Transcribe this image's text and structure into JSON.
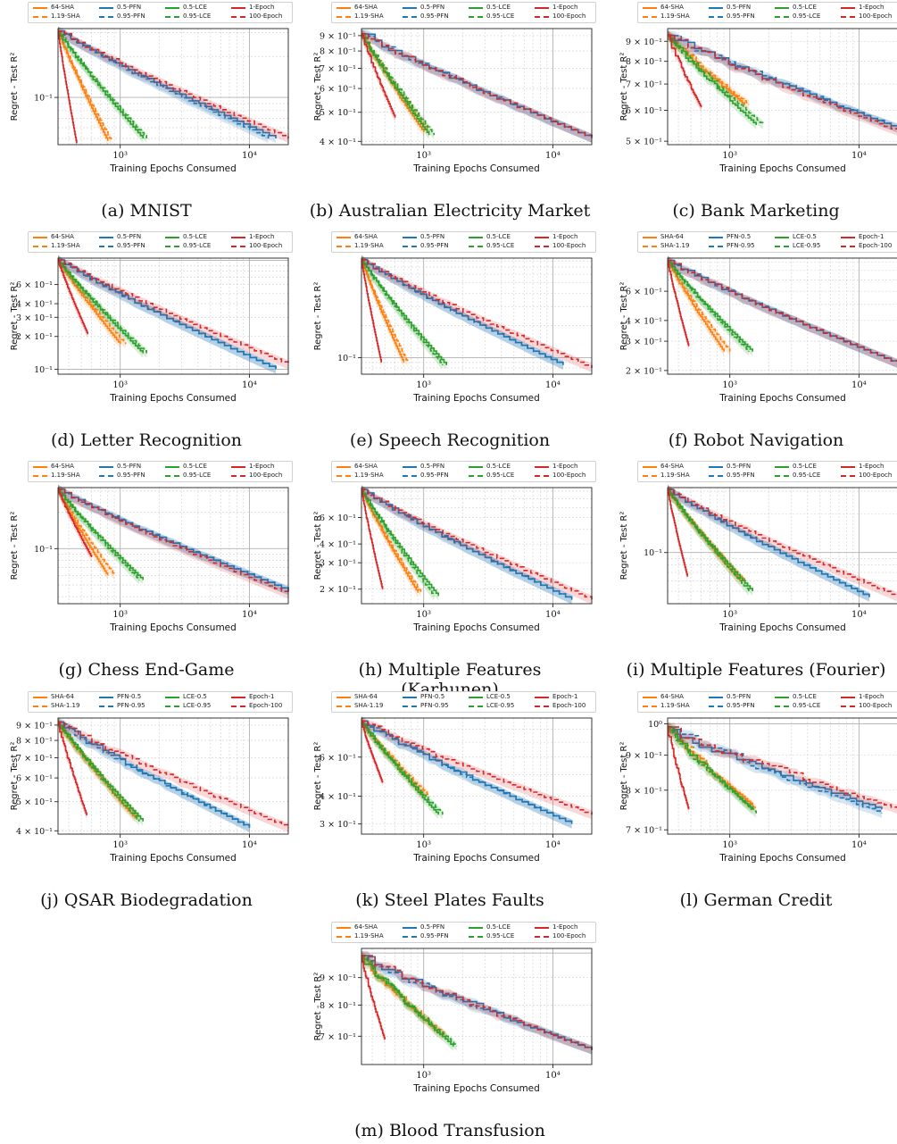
{
  "colors": {
    "orange": "#ff7f0e",
    "blue": "#1f77b4",
    "green": "#2ca02c",
    "red": "#d62728"
  },
  "legend_styles": {
    "names": [
      "orange-solid",
      "blue-solid",
      "green-solid",
      "red-solid",
      "orange-dashed",
      "blue-dashed",
      "green-dashed",
      "red-dashed"
    ]
  },
  "legend_sets": {
    "A": [
      "64-SHA",
      "0.5-PFN",
      "0.5-LCE",
      "1-Epoch",
      "1.19-SHA",
      "0.95-PFN",
      "0.95-LCE",
      "100-Epoch"
    ],
    "B": [
      "SHA-64",
      "PFN-0.5",
      "LCE-0.5",
      "Epoch-1",
      "SHA-1.19",
      "PFN-0.95",
      "LCE-0.95",
      "Epoch-100"
    ]
  },
  "chart_data": [
    {
      "type": "line",
      "caption": "(a) MNIST",
      "legend": "A",
      "xlabel": "Training Epochs Consumed",
      "ylabel": "Regret - Test R²",
      "xscale": "log",
      "yscale": "log",
      "xlim": [
        330,
        20000
      ],
      "ylim": [
        0.045,
        0.32
      ],
      "xticks": [
        "10³",
        "10⁴"
      ],
      "yticks": [
        "10⁻¹"
      ],
      "series": [
        {
          "name": "64-SHA",
          "end_x": 800,
          "end_y": 0.048
        },
        {
          "name": "1.19-SHA",
          "end_x": 850,
          "end_y": 0.048
        },
        {
          "name": "0.5-PFN",
          "end_x": 16000,
          "end_y": 0.05
        },
        {
          "name": "0.95-PFN",
          "end_x": 14000,
          "end_y": 0.05
        },
        {
          "name": "0.5-LCE",
          "end_x": 1500,
          "end_y": 0.05
        },
        {
          "name": "0.95-LCE",
          "end_x": 1600,
          "end_y": 0.05
        },
        {
          "name": "1-Epoch",
          "end_x": 460,
          "end_y": 0.046
        },
        {
          "name": "100-Epoch",
          "end_x": 20000,
          "end_y": 0.05
        }
      ]
    },
    {
      "type": "line",
      "caption": "(b) Australian Electricity Market",
      "legend": "A",
      "xlabel": "Training Epochs Consumed",
      "ylabel": "Regret - Test R²",
      "xscale": "log",
      "yscale": "log",
      "xlim": [
        330,
        20000
      ],
      "ylim": [
        0.39,
        0.95
      ],
      "xticks": [
        "10³",
        "10⁴"
      ],
      "yticks": [
        "4 × 10⁻¹",
        "5 × 10⁻¹",
        "6 × 10⁻¹",
        "7 × 10⁻¹",
        "8 × 10⁻¹",
        "9 × 10⁻¹"
      ],
      "series": [
        {
          "name": "64-SHA",
          "end_x": 1000,
          "end_y": 0.43
        },
        {
          "name": "1.19-SHA",
          "end_x": 1100,
          "end_y": 0.43
        },
        {
          "name": "0.5-PFN",
          "end_x": 20000,
          "end_y": 0.41
        },
        {
          "name": "0.95-PFN",
          "end_x": 20000,
          "end_y": 0.41
        },
        {
          "name": "0.5-LCE",
          "end_x": 1100,
          "end_y": 0.42
        },
        {
          "name": "0.95-LCE",
          "end_x": 1200,
          "end_y": 0.42
        },
        {
          "name": "1-Epoch",
          "end_x": 600,
          "end_y": 0.48
        },
        {
          "name": "100-Epoch",
          "end_x": 20000,
          "end_y": 0.41
        }
      ]
    },
    {
      "type": "line",
      "caption": "(c) Bank Marketing",
      "legend": "A",
      "xlabel": "Training Epochs Consumed",
      "ylabel": "Regret - Test R²",
      "xscale": "log",
      "yscale": "log",
      "xlim": [
        330,
        20000
      ],
      "ylim": [
        0.49,
        0.97
      ],
      "xticks": [
        "10³",
        "10⁴"
      ],
      "yticks": [
        "5 × 10⁻¹",
        "6 × 10⁻¹",
        "7 × 10⁻¹",
        "8 × 10⁻¹",
        "9 × 10⁻¹"
      ],
      "series": [
        {
          "name": "64-SHA",
          "end_x": 1300,
          "end_y": 0.62
        },
        {
          "name": "1.19-SHA",
          "end_x": 1400,
          "end_y": 0.62
        },
        {
          "name": "0.5-PFN",
          "end_x": 20000,
          "end_y": 0.54
        },
        {
          "name": "0.95-PFN",
          "end_x": 20000,
          "end_y": 0.54
        },
        {
          "name": "0.5-LCE",
          "end_x": 1600,
          "end_y": 0.55
        },
        {
          "name": "0.95-LCE",
          "end_x": 1800,
          "end_y": 0.55
        },
        {
          "name": "1-Epoch",
          "end_x": 600,
          "end_y": 0.61
        },
        {
          "name": "100-Epoch",
          "end_x": 20000,
          "end_y": 0.53
        }
      ]
    },
    {
      "type": "line",
      "caption": "(d) Letter Recognition",
      "legend": "A",
      "xlabel": "Training Epochs Consumed",
      "ylabel": "Regret - Test R²",
      "xscale": "log",
      "yscale": "log",
      "xlim": [
        330,
        20000
      ],
      "ylim": [
        0.09,
        1.05
      ],
      "xticks": [
        "10³",
        "10⁴"
      ],
      "yticks": [
        "10⁻¹",
        "2 × 10⁻¹",
        "3 × 10⁻¹",
        "4 × 10⁻¹",
        "6 × 10⁻¹"
      ],
      "series": [
        {
          "name": "64-SHA",
          "end_x": 1000,
          "end_y": 0.17
        },
        {
          "name": "1.19-SHA",
          "end_x": 1100,
          "end_y": 0.17
        },
        {
          "name": "0.5-PFN",
          "end_x": 16000,
          "end_y": 0.1
        },
        {
          "name": "0.95-PFN",
          "end_x": 16000,
          "end_y": 0.1
        },
        {
          "name": "0.5-LCE",
          "end_x": 1500,
          "end_y": 0.14
        },
        {
          "name": "0.95-LCE",
          "end_x": 1600,
          "end_y": 0.14
        },
        {
          "name": "1-Epoch",
          "end_x": 560,
          "end_y": 0.21
        },
        {
          "name": "100-Epoch",
          "end_x": 20000,
          "end_y": 0.11
        }
      ]
    },
    {
      "type": "line",
      "caption": "(e) Speech Recognition",
      "legend": "A",
      "xlabel": "Training Epochs Consumed",
      "ylabel": "Regret - Test R²",
      "xscale": "log",
      "yscale": "log",
      "xlim": [
        330,
        20000
      ],
      "ylim": [
        0.07,
        0.85
      ],
      "xticks": [
        "10³",
        "10⁴"
      ],
      "yticks": [
        "10⁻¹"
      ],
      "series": [
        {
          "name": "64-SHA",
          "end_x": 700,
          "end_y": 0.09
        },
        {
          "name": "1.19-SHA",
          "end_x": 750,
          "end_y": 0.09
        },
        {
          "name": "0.5-PFN",
          "end_x": 12000,
          "end_y": 0.085
        },
        {
          "name": "0.95-PFN",
          "end_x": 12000,
          "end_y": 0.085
        },
        {
          "name": "0.5-LCE",
          "end_x": 1500,
          "end_y": 0.085
        },
        {
          "name": "0.95-LCE",
          "end_x": 1400,
          "end_y": 0.085
        },
        {
          "name": "1-Epoch",
          "end_x": 470,
          "end_y": 0.09
        },
        {
          "name": "100-Epoch",
          "end_x": 20000,
          "end_y": 0.08
        }
      ]
    },
    {
      "type": "line",
      "caption": "(f) Robot Navigation",
      "legend": "B",
      "xlabel": "Training Epochs Consumed",
      "ylabel": "Regret - Test R²",
      "xscale": "log",
      "yscale": "log",
      "xlim": [
        330,
        20000
      ],
      "ylim": [
        0.19,
        0.95
      ],
      "xticks": [
        "10³",
        "10⁴"
      ],
      "yticks": [
        "2 × 10⁻¹",
        "3 × 10⁻¹",
        "4 × 10⁻¹",
        "6 × 10⁻¹"
      ],
      "series": [
        {
          "name": "SHA-64",
          "end_x": 900,
          "end_y": 0.26
        },
        {
          "name": "SHA-1.19",
          "end_x": 1000,
          "end_y": 0.26
        },
        {
          "name": "PFN-0.5",
          "end_x": 20000,
          "end_y": 0.22
        },
        {
          "name": "PFN-0.95",
          "end_x": 20000,
          "end_y": 0.22
        },
        {
          "name": "LCE-0.5",
          "end_x": 1500,
          "end_y": 0.26
        },
        {
          "name": "LCE-0.95",
          "end_x": 1400,
          "end_y": 0.26
        },
        {
          "name": "Epoch-1",
          "end_x": 480,
          "end_y": 0.28
        },
        {
          "name": "Epoch-100",
          "end_x": 20000,
          "end_y": 0.22
        }
      ]
    },
    {
      "type": "line",
      "caption": "(g) Chess End-Game",
      "legend": "A",
      "xlabel": "Training Epochs Consumed",
      "ylabel": "Regret - Test R²",
      "xscale": "log",
      "yscale": "log",
      "xlim": [
        330,
        20000
      ],
      "ylim": [
        0.035,
        0.32
      ],
      "xticks": [
        "10³",
        "10⁴"
      ],
      "yticks": [
        "10⁻¹"
      ],
      "series": [
        {
          "name": "64-SHA",
          "end_x": 800,
          "end_y": 0.06
        },
        {
          "name": "1.19-SHA",
          "end_x": 900,
          "end_y": 0.06
        },
        {
          "name": "0.5-PFN",
          "end_x": 20000,
          "end_y": 0.045
        },
        {
          "name": "0.95-PFN",
          "end_x": 20000,
          "end_y": 0.045
        },
        {
          "name": "0.5-LCE",
          "end_x": 1500,
          "end_y": 0.055
        },
        {
          "name": "0.95-LCE",
          "end_x": 1400,
          "end_y": 0.055
        },
        {
          "name": "1-Epoch",
          "end_x": 600,
          "end_y": 0.085
        },
        {
          "name": "100-Epoch",
          "end_x": 20000,
          "end_y": 0.042
        }
      ]
    },
    {
      "type": "line",
      "caption": "(h) Multiple Features (Karhunen)",
      "legend": "A",
      "xlabel": "Training Epochs Consumed",
      "ylabel": "Regret - Test R²",
      "xscale": "log",
      "yscale": "log",
      "xlim": [
        330,
        20000
      ],
      "ylim": [
        0.16,
        0.95
      ],
      "xticks": [
        "10³",
        "10⁴"
      ],
      "yticks": [
        "2 × 10⁻¹",
        "3 × 10⁻¹",
        "4 × 10⁻¹",
        "6 × 10⁻¹"
      ],
      "series": [
        {
          "name": "64-SHA",
          "end_x": 900,
          "end_y": 0.19
        },
        {
          "name": "1.19-SHA",
          "end_x": 950,
          "end_y": 0.19
        },
        {
          "name": "0.5-PFN",
          "end_x": 14000,
          "end_y": 0.17
        },
        {
          "name": "0.95-PFN",
          "end_x": 14000,
          "end_y": 0.17
        },
        {
          "name": "0.5-LCE",
          "end_x": 1300,
          "end_y": 0.18
        },
        {
          "name": "0.95-LCE",
          "end_x": 1200,
          "end_y": 0.18
        },
        {
          "name": "1-Epoch",
          "end_x": 480,
          "end_y": 0.2
        },
        {
          "name": "100-Epoch",
          "end_x": 20000,
          "end_y": 0.17
        }
      ]
    },
    {
      "type": "line",
      "caption": "(i) Multiple Features (Fourier)",
      "legend": "A",
      "xlabel": "Training Epochs Consumed",
      "ylabel": "Regret - Test R²",
      "xscale": "log",
      "yscale": "log",
      "xlim": [
        330,
        20000
      ],
      "ylim": [
        0.04,
        0.32
      ],
      "xticks": [
        "10³",
        "10⁴"
      ],
      "yticks": [
        "10⁻¹"
      ],
      "series": [
        {
          "name": "64-SHA",
          "end_x": 1200,
          "end_y": 0.06
        },
        {
          "name": "1.19-SHA",
          "end_x": 1300,
          "end_y": 0.06
        },
        {
          "name": "0.5-PFN",
          "end_x": 12000,
          "end_y": 0.045
        },
        {
          "name": "0.95-PFN",
          "end_x": 12000,
          "end_y": 0.045
        },
        {
          "name": "0.5-LCE",
          "end_x": 1500,
          "end_y": 0.05
        },
        {
          "name": "0.95-LCE",
          "end_x": 1400,
          "end_y": 0.05
        },
        {
          "name": "1-Epoch",
          "end_x": 470,
          "end_y": 0.065
        },
        {
          "name": "100-Epoch",
          "end_x": 20000,
          "end_y": 0.045
        }
      ]
    },
    {
      "type": "line",
      "caption": "(j) QSAR Biodegradation",
      "legend": "B",
      "xlabel": "Training Epochs Consumed",
      "ylabel": "Regret - Test R²",
      "xscale": "log",
      "yscale": "log",
      "xlim": [
        330,
        20000
      ],
      "ylim": [
        0.39,
        0.95
      ],
      "xticks": [
        "10³",
        "10⁴"
      ],
      "yticks": [
        "4 × 10⁻¹",
        "5 × 10⁻¹",
        "6 × 10⁻¹",
        "7 × 10⁻¹",
        "8 × 10⁻¹",
        "9 × 10⁻¹"
      ],
      "series": [
        {
          "name": "SHA-64",
          "end_x": 1300,
          "end_y": 0.44
        },
        {
          "name": "SHA-1.19",
          "end_x": 1400,
          "end_y": 0.44
        },
        {
          "name": "PFN-0.5",
          "end_x": 10000,
          "end_y": 0.41
        },
        {
          "name": "PFN-0.95",
          "end_x": 10000,
          "end_y": 0.41
        },
        {
          "name": "LCE-0.5",
          "end_x": 1500,
          "end_y": 0.43
        },
        {
          "name": "LCE-0.95",
          "end_x": 1400,
          "end_y": 0.43
        },
        {
          "name": "Epoch-1",
          "end_x": 550,
          "end_y": 0.45
        },
        {
          "name": "Epoch-100",
          "end_x": 20000,
          "end_y": 0.41
        }
      ]
    },
    {
      "type": "line",
      "caption": "(k) Steel Plates Faults",
      "legend": "B",
      "xlabel": "Training Epochs Consumed",
      "ylabel": "Regret - Test R²",
      "xscale": "log",
      "yscale": "log",
      "xlim": [
        330,
        20000
      ],
      "ylim": [
        0.27,
        0.9
      ],
      "xticks": [
        "10³",
        "10⁴"
      ],
      "yticks": [
        "3 × 10⁻¹",
        "4 × 10⁻¹",
        "6 × 10⁻¹"
      ],
      "series": [
        {
          "name": "SHA-64",
          "end_x": 1000,
          "end_y": 0.4
        },
        {
          "name": "SHA-1.19",
          "end_x": 1100,
          "end_y": 0.4
        },
        {
          "name": "PFN-0.5",
          "end_x": 14000,
          "end_y": 0.3
        },
        {
          "name": "PFN-0.95",
          "end_x": 14000,
          "end_y": 0.3
        },
        {
          "name": "LCE-0.5",
          "end_x": 1300,
          "end_y": 0.33
        },
        {
          "name": "LCE-0.95",
          "end_x": 1400,
          "end_y": 0.33
        },
        {
          "name": "Epoch-1",
          "end_x": 480,
          "end_y": 0.46
        },
        {
          "name": "Epoch-100",
          "end_x": 20000,
          "end_y": 0.33
        }
      ]
    },
    {
      "type": "line",
      "caption": "(l) German Credit",
      "legend": "A",
      "xlabel": "Training Epochs Consumed",
      "ylabel": "Regret - Test R²",
      "xscale": "log",
      "yscale": "log",
      "xlim": [
        330,
        20000
      ],
      "ylim": [
        0.69,
        1.02
      ],
      "xticks": [
        "10³",
        "10⁴"
      ],
      "yticks": [
        "7 × 10⁻¹",
        "8 × 10⁻¹",
        "9 × 10⁻¹",
        "10⁰"
      ],
      "series": [
        {
          "name": "64-SHA",
          "end_x": 1500,
          "end_y": 0.76
        },
        {
          "name": "1.19-SHA",
          "end_x": 1600,
          "end_y": 0.75
        },
        {
          "name": "0.5-PFN",
          "end_x": 15000,
          "end_y": 0.75
        },
        {
          "name": "0.95-PFN",
          "end_x": 15000,
          "end_y": 0.74
        },
        {
          "name": "0.5-LCE",
          "end_x": 1500,
          "end_y": 0.75
        },
        {
          "name": "0.95-LCE",
          "end_x": 1600,
          "end_y": 0.74
        },
        {
          "name": "1-Epoch",
          "end_x": 480,
          "end_y": 0.75
        },
        {
          "name": "100-Epoch",
          "end_x": 20000,
          "end_y": 0.75
        }
      ]
    },
    {
      "type": "line",
      "caption": "(m) Blood Transfusion",
      "legend": "A",
      "xlabel": "Training Epochs Consumed",
      "ylabel": "Regret - Test R²",
      "xscale": "log",
      "yscale": "log",
      "xlim": [
        330,
        20000
      ],
      "ylim": [
        0.62,
        1.02
      ],
      "xticks": [
        "10³",
        "10⁴"
      ],
      "yticks": [
        "7 × 10⁻¹",
        "8 × 10⁻¹",
        "9 × 10⁻¹"
      ],
      "series": [
        {
          "name": "64-SHA",
          "end_x": 1400,
          "end_y": 0.7
        },
        {
          "name": "1.19-SHA",
          "end_x": 1500,
          "end_y": 0.7
        },
        {
          "name": "0.5-PFN",
          "end_x": 20000,
          "end_y": 0.66
        },
        {
          "name": "0.95-PFN",
          "end_x": 20000,
          "end_y": 0.66
        },
        {
          "name": "0.5-LCE",
          "end_x": 1700,
          "end_y": 0.67
        },
        {
          "name": "0.95-LCE",
          "end_x": 1800,
          "end_y": 0.67
        },
        {
          "name": "1-Epoch",
          "end_x": 500,
          "end_y": 0.69
        },
        {
          "name": "100-Epoch",
          "end_x": 20000,
          "end_y": 0.66
        }
      ]
    }
  ]
}
